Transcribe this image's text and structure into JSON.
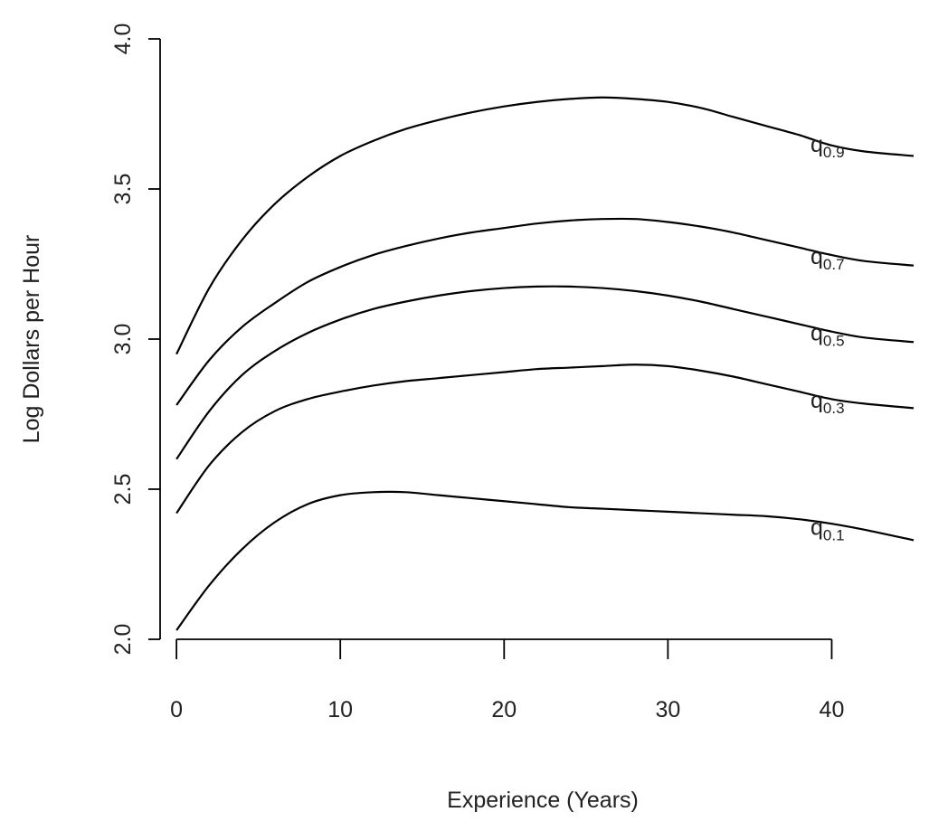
{
  "chart_data": {
    "type": "line",
    "title": "",
    "xlabel": "Experience (Years)",
    "ylabel": "Log Dollars per Hour",
    "xlim": [
      -1,
      45
    ],
    "ylim": [
      2.0,
      4.0
    ],
    "x_ticks": [
      0,
      10,
      20,
      30,
      40
    ],
    "y_ticks": [
      2.0,
      2.5,
      3.0,
      3.5,
      4.0
    ],
    "x_tick_labels": [
      "0",
      "10",
      "20",
      "30",
      "40"
    ],
    "y_tick_labels": [
      "2.0",
      "2.5",
      "3.0",
      "3.5",
      "4.0"
    ],
    "grid": false,
    "series": [
      {
        "name": "q0.9",
        "label_main": "q",
        "label_sub": "0.9",
        "x": [
          0,
          2,
          4,
          6,
          8,
          10,
          12,
          14,
          16,
          18,
          20,
          22,
          24,
          26,
          28,
          30,
          32,
          34,
          36,
          38,
          40,
          42,
          45
        ],
        "y": [
          2.95,
          3.17,
          3.33,
          3.45,
          3.54,
          3.61,
          3.66,
          3.7,
          3.73,
          3.755,
          3.775,
          3.79,
          3.8,
          3.805,
          3.8,
          3.79,
          3.77,
          3.74,
          3.71,
          3.68,
          3.645,
          3.625,
          3.61
        ]
      },
      {
        "name": "q0.7",
        "label_main": "q",
        "label_sub": "0.7",
        "x": [
          0,
          2,
          4,
          6,
          8,
          10,
          12,
          14,
          16,
          18,
          20,
          22,
          24,
          26,
          28,
          30,
          32,
          34,
          36,
          38,
          40,
          42,
          45
        ],
        "y": [
          2.78,
          2.93,
          3.04,
          3.12,
          3.19,
          3.24,
          3.28,
          3.31,
          3.335,
          3.355,
          3.37,
          3.385,
          3.395,
          3.4,
          3.4,
          3.39,
          3.375,
          3.355,
          3.33,
          3.305,
          3.28,
          3.26,
          3.245
        ]
      },
      {
        "name": "q0.5",
        "label_main": "q",
        "label_sub": "0.5",
        "x": [
          0,
          2,
          4,
          6,
          8,
          10,
          12,
          14,
          16,
          18,
          20,
          22,
          24,
          26,
          28,
          30,
          32,
          34,
          36,
          38,
          40,
          42,
          45
        ],
        "y": [
          2.6,
          2.76,
          2.88,
          2.96,
          3.02,
          3.065,
          3.1,
          3.125,
          3.145,
          3.16,
          3.17,
          3.175,
          3.175,
          3.17,
          3.16,
          3.145,
          3.125,
          3.1,
          3.075,
          3.05,
          3.025,
          3.005,
          2.99
        ]
      },
      {
        "name": "q0.3",
        "label_main": "q",
        "label_sub": "0.3",
        "x": [
          0,
          2,
          4,
          6,
          8,
          10,
          12,
          14,
          16,
          18,
          20,
          22,
          24,
          26,
          28,
          30,
          32,
          34,
          36,
          38,
          40,
          42,
          45
        ],
        "y": [
          2.42,
          2.58,
          2.69,
          2.76,
          2.8,
          2.825,
          2.845,
          2.86,
          2.87,
          2.88,
          2.89,
          2.9,
          2.905,
          2.91,
          2.915,
          2.91,
          2.895,
          2.875,
          2.85,
          2.825,
          2.8,
          2.785,
          2.77
        ]
      },
      {
        "name": "q0.1",
        "label_main": "q",
        "label_sub": "0.1",
        "x": [
          0,
          2,
          4,
          6,
          8,
          10,
          12,
          14,
          16,
          18,
          20,
          22,
          24,
          26,
          28,
          30,
          32,
          34,
          36,
          38,
          40,
          42,
          45
        ],
        "y": [
          2.03,
          2.18,
          2.3,
          2.39,
          2.45,
          2.48,
          2.49,
          2.49,
          2.48,
          2.47,
          2.46,
          2.45,
          2.44,
          2.435,
          2.43,
          2.425,
          2.42,
          2.415,
          2.41,
          2.4,
          2.385,
          2.365,
          2.33
        ]
      }
    ]
  }
}
